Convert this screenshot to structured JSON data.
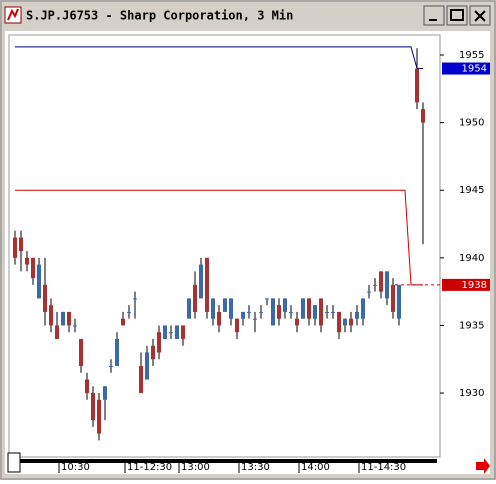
{
  "chart_data": {
    "type": "candlestick",
    "title": "S.JP.J6753 - Sharp Corporation, 3 Min",
    "categories": [
      null,
      null,
      null,
      null,
      null,
      null,
      null,
      null,
      "10:30",
      null,
      null,
      null,
      null,
      null,
      null,
      null,
      null,
      null,
      null,
      "11-12:30",
      null,
      null,
      null,
      null,
      null,
      null,
      null,
      null,
      "13:00",
      null,
      null,
      null,
      null,
      null,
      null,
      null,
      null,
      null,
      "13:30",
      null,
      null,
      null,
      null,
      null,
      null,
      null,
      null,
      null,
      "14:00",
      null,
      null,
      null,
      null,
      null,
      null,
      null,
      null,
      null,
      "11-14:30",
      null,
      null,
      null,
      null,
      null,
      null,
      null,
      null,
      null,
      null
    ],
    "open": [
      1941.5,
      1941.5,
      1940,
      1940,
      1937,
      1938,
      1936.5,
      1935,
      1935,
      1936,
      1935,
      1934,
      1931,
      1930,
      1929.5,
      1929.5,
      1932,
      1932,
      1935.5,
      1936,
      1937,
      1932,
      1931,
      1933.5,
      1934.5,
      1934,
      1934.5,
      1934,
      1935,
      1935.5,
      1938,
      1937,
      1940,
      1935.5,
      1936,
      1936,
      1935.5,
      1935.5,
      1935.5,
      1936,
      1935.5,
      1936,
      1937,
      1935,
      1936.5,
      1936,
      1936,
      1935.5,
      1935.5,
      1937,
      1935.5,
      1937,
      1936,
      1936,
      1936,
      1935,
      1935.5,
      1935.5,
      1935.5,
      1937.5,
      1938,
      1939,
      1937,
      1938,
      1935.5,
      null,
      null,
      1954,
      1951
    ],
    "high": [
      1942,
      1942,
      1940.5,
      1940,
      1940,
      1940,
      1937,
      1936,
      1936,
      1936,
      1935.5,
      1934,
      1931.5,
      1930.5,
      1930,
      1930.5,
      1932.5,
      1934.5,
      1936,
      1936.5,
      1937.5,
      1933,
      1933.5,
      1934,
      1935,
      1935,
      1935,
      1935,
      1935,
      1937,
      1939,
      1940,
      1940,
      1937,
      1936.5,
      1937,
      1937,
      1935.5,
      1936,
      1936.5,
      1936,
      1936.5,
      1937,
      1937,
      1937,
      1937,
      1936.5,
      1936,
      1937,
      1937,
      1936.5,
      1937,
      1936.5,
      1936.5,
      1936,
      1935.5,
      1936,
      1936.5,
      1937,
      1938,
      1938.5,
      1939,
      1939,
      1938.5,
      1938,
      null,
      null,
      1955.5,
      1951.5
    ],
    "low": [
      1939.5,
      1939,
      1939,
      1938,
      1937,
      1935,
      1934.5,
      1934,
      1935,
      1934.5,
      1934.5,
      1931.5,
      1929.5,
      1927.5,
      1926.5,
      1928,
      1931.5,
      1932,
      1935,
      1935.5,
      1935.5,
      1930,
      1931,
      1932,
      1932.5,
      1934,
      1934,
      1934,
      1933.5,
      1935.5,
      1935.5,
      1937,
      1935.5,
      1935,
      1934.5,
      1936,
      1935,
      1934,
      1935,
      1935.5,
      1934.5,
      1935.5,
      1936.5,
      1935,
      1935,
      1935.5,
      1935.5,
      1934.5,
      1935.5,
      1935,
      1935,
      1934.5,
      1935.5,
      1935.5,
      1934,
      1934.5,
      1934.5,
      1935,
      1935,
      1937,
      1937.5,
      1937,
      1936.5,
      1935.5,
      1935,
      null,
      null,
      1951,
      1941
    ],
    "close": [
      1940,
      1940.5,
      1939.5,
      1938.5,
      1939.5,
      1936,
      1935,
      1934,
      1936,
      1935,
      1935,
      1932,
      1930,
      1928,
      1927,
      1930.5,
      1932,
      1934,
      1935,
      1936,
      1937,
      1930,
      1933,
      1932.5,
      1933,
      1935,
      1934.5,
      1935,
      1934,
      1937,
      1936,
      1939.5,
      1936,
      1937,
      1935,
      1937,
      1937,
      1934.5,
      1936,
      1936,
      1935.5,
      1936,
      1937,
      1937,
      1935.5,
      1937,
      1936,
      1935,
      1937,
      1935.5,
      1936.5,
      1935,
      1936,
      1936,
      1934.5,
      1935.5,
      1935,
      1936,
      1937,
      1937.5,
      1938,
      1937.5,
      1939,
      1936,
      1938,
      null,
      null,
      1951.5,
      1950
    ],
    "up_color": "#3a6aa8",
    "down_color": "#a83232",
    "lines": [
      {
        "color": "#000080",
        "values": [
          1955.6,
          1955.6,
          1955.6,
          1955.6,
          1955.6,
          1955.6,
          1955.6,
          1955.6,
          1955.6,
          1955.6,
          1955.6,
          1955.6,
          1955.6,
          1955.6,
          1955.6,
          1955.6,
          1955.6,
          1955.6,
          1955.6,
          1955.6,
          1955.6,
          1955.6,
          1955.6,
          1955.6,
          1955.6,
          1955.6,
          1955.6,
          1955.6,
          1955.6,
          1955.6,
          1955.6,
          1955.6,
          1955.6,
          1955.6,
          1955.6,
          1955.6,
          1955.6,
          1955.6,
          1955.6,
          1955.6,
          1955.6,
          1955.6,
          1955.6,
          1955.6,
          1955.6,
          1955.6,
          1955.6,
          1955.6,
          1955.6,
          1955.6,
          1955.6,
          1955.6,
          1955.6,
          1955.6,
          1955.6,
          1955.6,
          1955.6,
          1955.6,
          1955.6,
          1955.6,
          1955.6,
          1955.6,
          1955.6,
          1955.6,
          1955.6,
          1955.6,
          1955.6,
          1954,
          1954
        ]
      },
      {
        "color": "#cc0000",
        "values": [
          1945,
          1945,
          1945,
          1945,
          1945,
          1945,
          1945,
          1945,
          1945,
          1945,
          1945,
          1945,
          1945,
          1945,
          1945,
          1945,
          1945,
          1945,
          1945,
          1945,
          1945,
          1945,
          1945,
          1945,
          1945,
          1945,
          1945,
          1945,
          1945,
          1945,
          1945,
          1945,
          1945,
          1945,
          1945,
          1945,
          1945,
          1945,
          1945,
          1945,
          1945,
          1945,
          1945,
          1945,
          1945,
          1945,
          1945,
          1945,
          1945,
          1945,
          1945,
          1945,
          1945,
          1945,
          1945,
          1945,
          1945,
          1945,
          1945,
          1945,
          1945,
          1945,
          1945,
          1945,
          1945,
          1945,
          1938,
          1938,
          1938
        ]
      }
    ],
    "price_markers": [
      {
        "value": 1954,
        "color": "#0000cc"
      },
      {
        "value": 1938,
        "color": "#cc0000"
      }
    ],
    "ylim": [
      1925.27,
      1956.48
    ],
    "yticks": [
      1930,
      1935,
      1940,
      1945,
      1950,
      1955
    ],
    "grid": false
  }
}
